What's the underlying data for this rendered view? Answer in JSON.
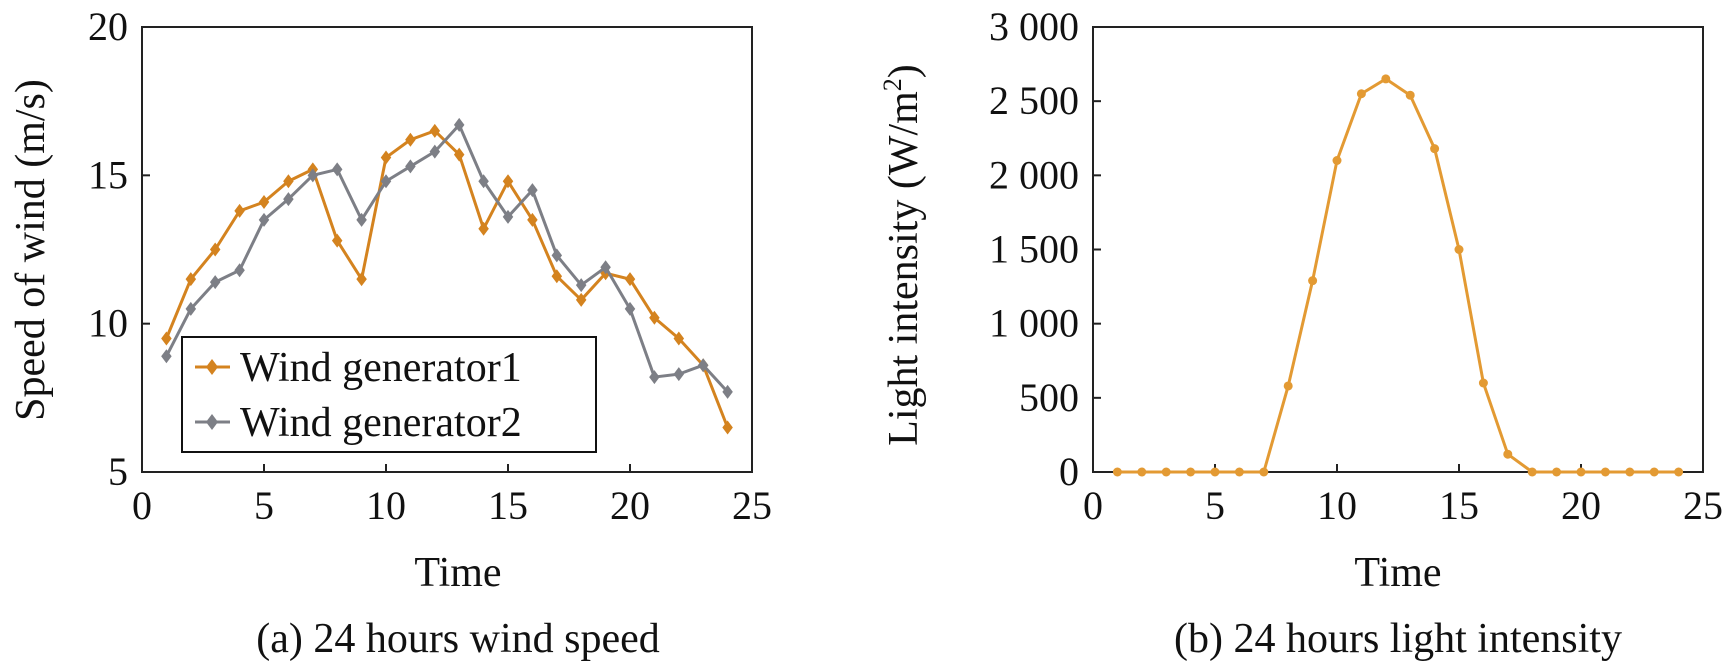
{
  "chart_data": [
    {
      "type": "line",
      "caption": "(a) 24 hours wind speed",
      "xlabel": "Time",
      "ylabel": "Speed of wind (m/s)",
      "xlim": [
        0,
        25
      ],
      "ylim": [
        5,
        20
      ],
      "xticks": [
        "0",
        "5",
        "10",
        "15",
        "20",
        "25"
      ],
      "yticks": [
        "5",
        "10",
        "15",
        "20"
      ],
      "grid": false,
      "legend_position": "lower-left",
      "x": [
        1,
        2,
        3,
        4,
        5,
        6,
        7,
        8,
        9,
        10,
        11,
        12,
        13,
        14,
        15,
        16,
        17,
        18,
        19,
        20,
        21,
        22,
        23,
        24
      ],
      "series": [
        {
          "name": "Wind generator1",
          "color": "#d4831f",
          "marker": "diamond",
          "values": [
            9.5,
            11.5,
            12.5,
            13.8,
            14.1,
            14.8,
            15.2,
            12.8,
            11.5,
            15.6,
            16.2,
            16.5,
            15.7,
            13.2,
            14.8,
            13.5,
            11.6,
            10.8,
            11.7,
            11.5,
            10.2,
            9.5,
            8.6,
            6.5
          ]
        },
        {
          "name": "Wind generator2",
          "color": "#7d7f86",
          "marker": "diamond",
          "values": [
            8.9,
            10.5,
            11.4,
            11.8,
            13.5,
            14.2,
            15.0,
            15.2,
            13.5,
            14.8,
            15.3,
            15.8,
            16.7,
            14.8,
            13.6,
            14.5,
            12.3,
            11.3,
            11.9,
            10.5,
            8.2,
            8.3,
            8.6,
            7.7
          ]
        }
      ]
    },
    {
      "type": "line",
      "caption": "(b) 24 hours light intensity",
      "xlabel": "Time",
      "ylabel": "Light intensity (W/m",
      "ylabel_superscript": "2",
      "ylabel_close": ")",
      "xlim": [
        0,
        25
      ],
      "ylim": [
        0,
        3000
      ],
      "xticks": [
        "0",
        "5",
        "10",
        "15",
        "20",
        "25"
      ],
      "yticks": [
        "0",
        "500",
        "1 000",
        "1 500",
        "2 000",
        "2 500",
        "3 000"
      ],
      "grid": false,
      "x": [
        1,
        2,
        3,
        4,
        5,
        6,
        7,
        8,
        9,
        10,
        11,
        12,
        13,
        14,
        15,
        16,
        17,
        18,
        19,
        20,
        21,
        22,
        23,
        24
      ],
      "series": [
        {
          "color": "#e39a33",
          "marker": "circle",
          "values": [
            0,
            0,
            0,
            0,
            0,
            0,
            0,
            580,
            1290,
            2100,
            2550,
            2650,
            2540,
            2180,
            1500,
            600,
            120,
            0,
            0,
            0,
            0,
            0,
            0,
            0
          ]
        }
      ]
    }
  ]
}
